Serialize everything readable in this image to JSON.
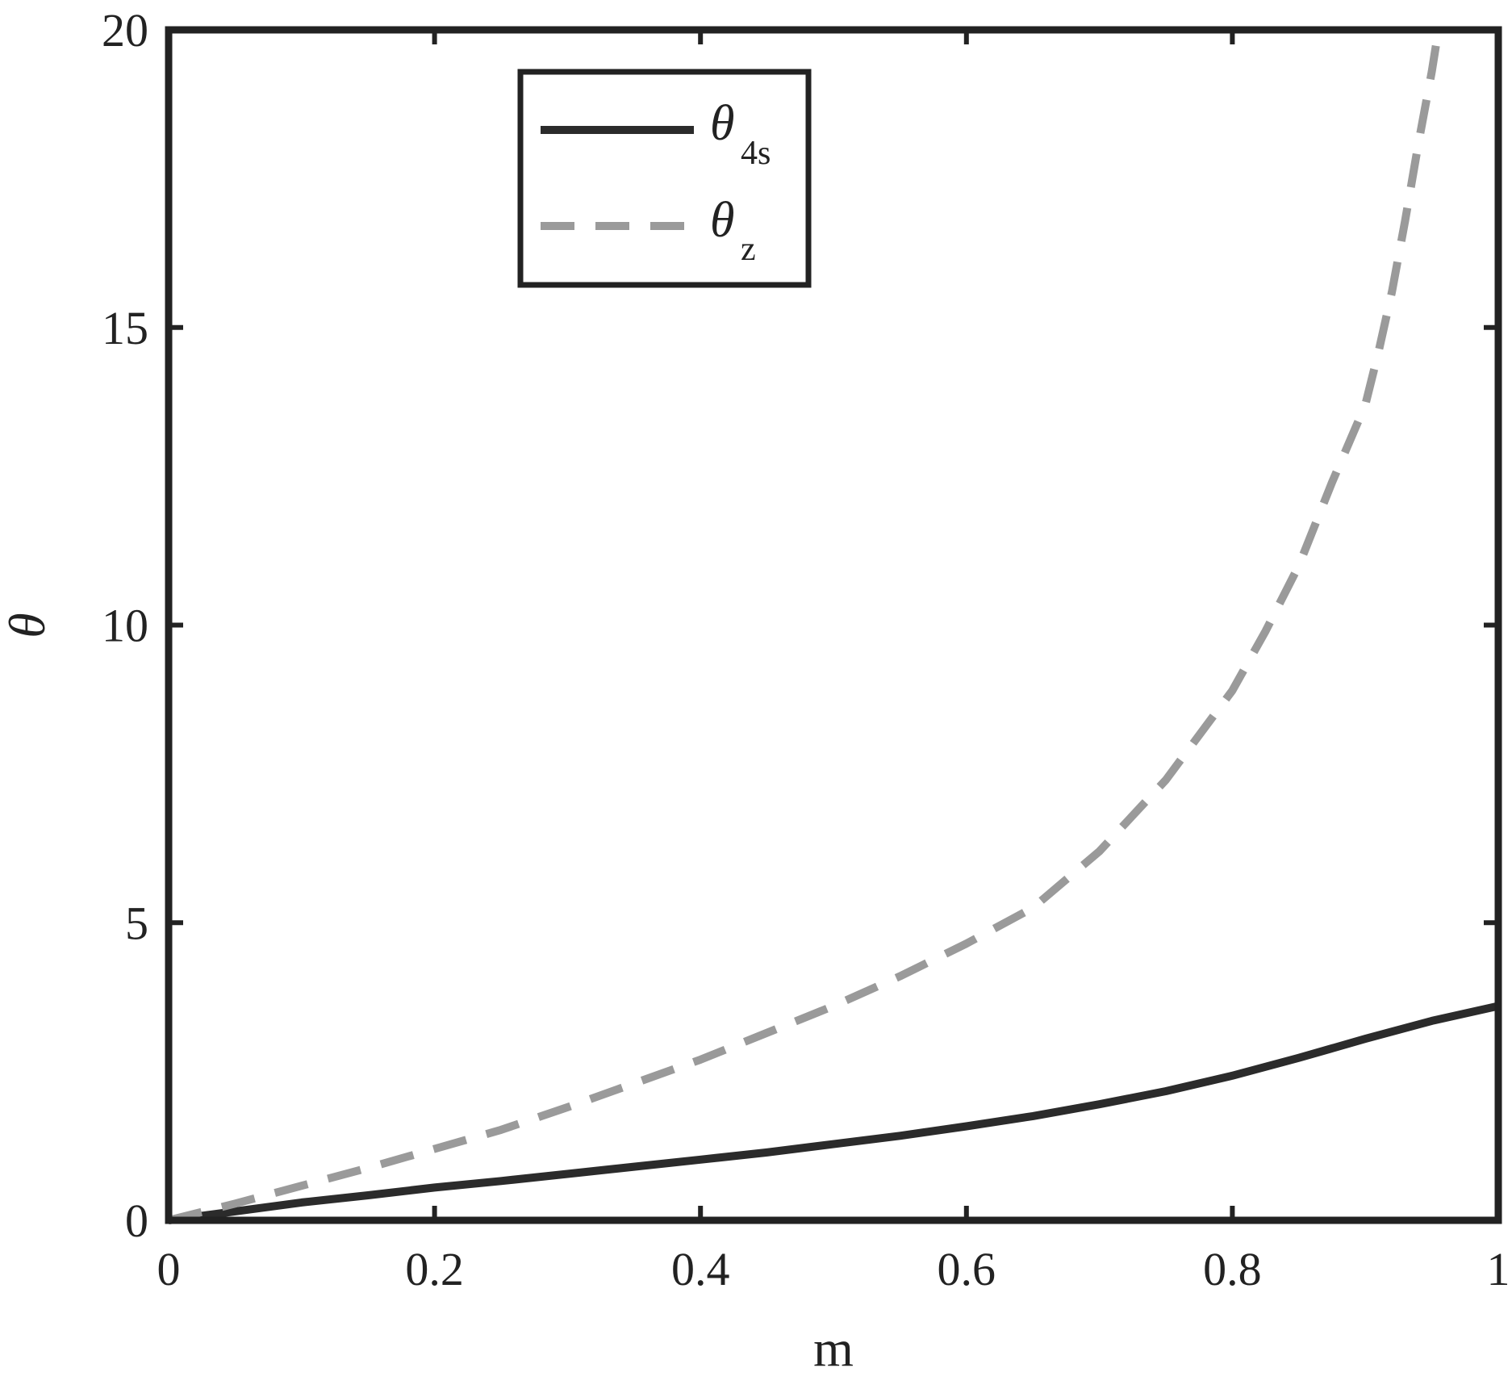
{
  "chart_data": {
    "type": "line",
    "xlabel": "m",
    "ylabel": "θ",
    "xlim": [
      0,
      1
    ],
    "ylim": [
      0,
      20
    ],
    "xticks": [
      0,
      0.2,
      0.4,
      0.6,
      0.8,
      1
    ],
    "xtick_labels": [
      "0",
      "0.2",
      "0.4",
      "0.6",
      "0.8",
      "1"
    ],
    "yticks": [
      0,
      5,
      10,
      15,
      20
    ],
    "ytick_labels": [
      "0",
      "5",
      "10",
      "15",
      "20"
    ],
    "grid": false,
    "legend_position": "top-center",
    "series": [
      {
        "name": "θ",
        "subscript": "4s",
        "style": "solid",
        "color": "#2b2b2b",
        "x": [
          0,
          0.05,
          0.1,
          0.15,
          0.2,
          0.25,
          0.3,
          0.35,
          0.4,
          0.45,
          0.5,
          0.55,
          0.6,
          0.65,
          0.7,
          0.75,
          0.8,
          0.85,
          0.9,
          0.95,
          1.0
        ],
        "y": [
          0,
          0.15,
          0.3,
          0.42,
          0.55,
          0.66,
          0.78,
          0.9,
          1.02,
          1.14,
          1.28,
          1.42,
          1.58,
          1.75,
          1.95,
          2.17,
          2.43,
          2.73,
          3.05,
          3.35,
          3.6
        ]
      },
      {
        "name": "θ",
        "subscript": "z",
        "style": "dashed",
        "color": "#9a9a9a",
        "x": [
          0,
          0.05,
          0.1,
          0.15,
          0.2,
          0.25,
          0.3,
          0.35,
          0.4,
          0.45,
          0.5,
          0.55,
          0.6,
          0.65,
          0.7,
          0.75,
          0.8,
          0.825,
          0.85,
          0.875,
          0.9,
          0.91,
          0.92,
          0.93,
          0.94,
          0.95,
          0.955
        ],
        "y": [
          0,
          0.28,
          0.58,
          0.88,
          1.2,
          1.52,
          1.9,
          2.3,
          2.7,
          3.15,
          3.6,
          4.1,
          4.65,
          5.25,
          6.2,
          7.4,
          8.9,
          9.9,
          11.0,
          12.4,
          13.7,
          14.6,
          15.6,
          16.8,
          18.1,
          19.3,
          20.0
        ]
      }
    ]
  }
}
